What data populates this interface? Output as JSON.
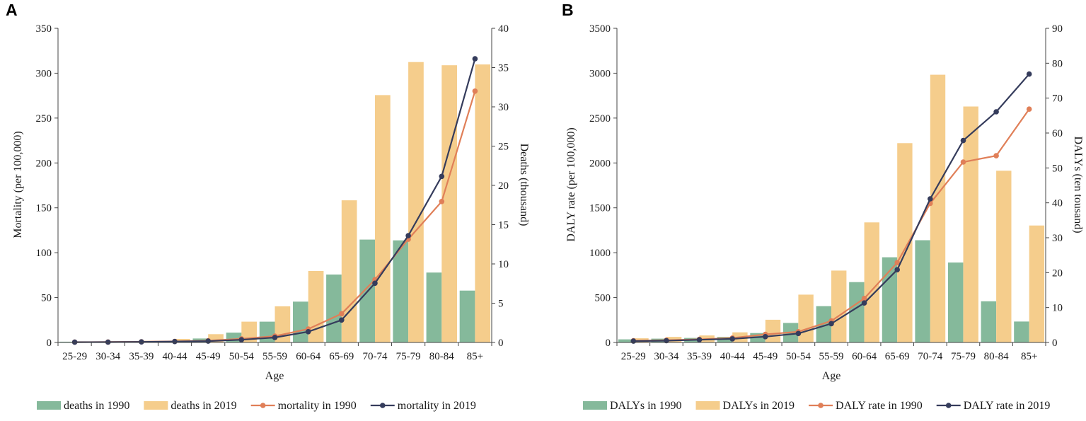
{
  "colors": {
    "green": "#85b99b",
    "yellow": "#f5cd8c",
    "orange": "#e07f58",
    "navy": "#353c5c",
    "axis": "#444444"
  },
  "chart_data": [
    {
      "type": "bar+line",
      "panel": "A",
      "xlabel": "Age",
      "ylabel_left": "Mortality (per 100,000)",
      "ylabel_right": "Deaths (thousand)",
      "categories": [
        "25-29",
        "30-34",
        "35-39",
        "40-44",
        "45-49",
        "50-54",
        "55-59",
        "60-64",
        "65-69",
        "70-74",
        "75-79",
        "80-84",
        "85+"
      ],
      "ylim_left": [
        0,
        350
      ],
      "yticks_left": [
        0,
        50,
        100,
        150,
        200,
        250,
        300,
        350
      ],
      "ylim_right": [
        0,
        40
      ],
      "yticks_right": [
        0,
        5,
        10,
        15,
        20,
        25,
        30,
        35,
        40
      ],
      "bars": [
        {
          "name": "deaths in 1990",
          "color_key": "green",
          "axis": "right",
          "values": [
            0.1,
            0.1,
            0.15,
            0.2,
            0.5,
            1.25,
            2.65,
            5.2,
            8.65,
            13.1,
            13.0,
            8.9,
            6.6
          ]
        },
        {
          "name": "deaths in 2019",
          "color_key": "yellow",
          "axis": "right",
          "values": [
            0.1,
            0.15,
            0.2,
            0.45,
            1.05,
            2.65,
            4.6,
            9.1,
            18.1,
            31.5,
            35.7,
            35.3,
            35.4
          ]
        }
      ],
      "lines": [
        {
          "name": "mortality in 1990",
          "color_key": "orange",
          "axis": "left",
          "values": [
            0.4,
            0.5,
            0.8,
            1.2,
            2.0,
            4.0,
            7.0,
            15.0,
            32.0,
            70.0,
            115.0,
            157.0,
            280.0
          ]
        },
        {
          "name": "mortality in 2019",
          "color_key": "navy",
          "axis": "left",
          "values": [
            0.3,
            0.4,
            0.6,
            1.0,
            1.5,
            3.0,
            5.5,
            12.0,
            25.0,
            66.0,
            119.0,
            185.0,
            316.0
          ]
        }
      ],
      "legend": [
        "deaths in 1990",
        "deaths in 2019",
        "mortality in 1990",
        "mortality in 2019"
      ]
    },
    {
      "type": "bar+line",
      "panel": "B",
      "xlabel": "Age",
      "ylabel_left": "DALY rate (per 100,000)",
      "ylabel_right": "DALYs (ten tousand)",
      "categories": [
        "25-29",
        "30-34",
        "35-39",
        "40-44",
        "45-49",
        "50-54",
        "55-59",
        "60-64",
        "65-69",
        "70-74",
        "75-79",
        "80-84",
        "85+"
      ],
      "ylim_left": [
        0,
        3500
      ],
      "yticks_left": [
        0,
        500,
        1000,
        1500,
        2000,
        2500,
        3000,
        3500
      ],
      "ylim_right": [
        0,
        90
      ],
      "yticks_right": [
        0,
        10,
        20,
        30,
        40,
        50,
        60,
        70,
        80,
        90
      ],
      "bars": [
        {
          "name": "DALYs in 1990",
          "color_key": "green",
          "axis": "right",
          "values": [
            0.9,
            1.1,
            1.3,
            1.6,
            2.7,
            5.6,
            10.4,
            17.3,
            24.4,
            29.3,
            22.9,
            11.8,
            6.0
          ]
        },
        {
          "name": "DALYs in 2019",
          "color_key": "yellow",
          "axis": "right",
          "values": [
            1.2,
            1.6,
            2.0,
            2.9,
            6.5,
            13.7,
            20.6,
            34.4,
            57.1,
            76.7,
            67.6,
            49.2,
            33.5
          ]
        }
      ],
      "lines": [
        {
          "name": "DALY rate in 1990",
          "color_key": "orange",
          "axis": "left",
          "values": [
            20,
            25,
            35,
            50,
            90,
            120,
            240,
            490,
            890,
            1550,
            2010,
            2080,
            2600
          ]
        },
        {
          "name": "DALY rate in 2019",
          "color_key": "navy",
          "axis": "left",
          "values": [
            15,
            20,
            30,
            40,
            65,
            100,
            210,
            440,
            810,
            1600,
            2250,
            2570,
            2990
          ]
        }
      ],
      "legend": [
        "DALYs in 1990",
        "DALYs in 2019",
        "DALY rate in 1990",
        "DALY rate in 2019"
      ]
    }
  ]
}
